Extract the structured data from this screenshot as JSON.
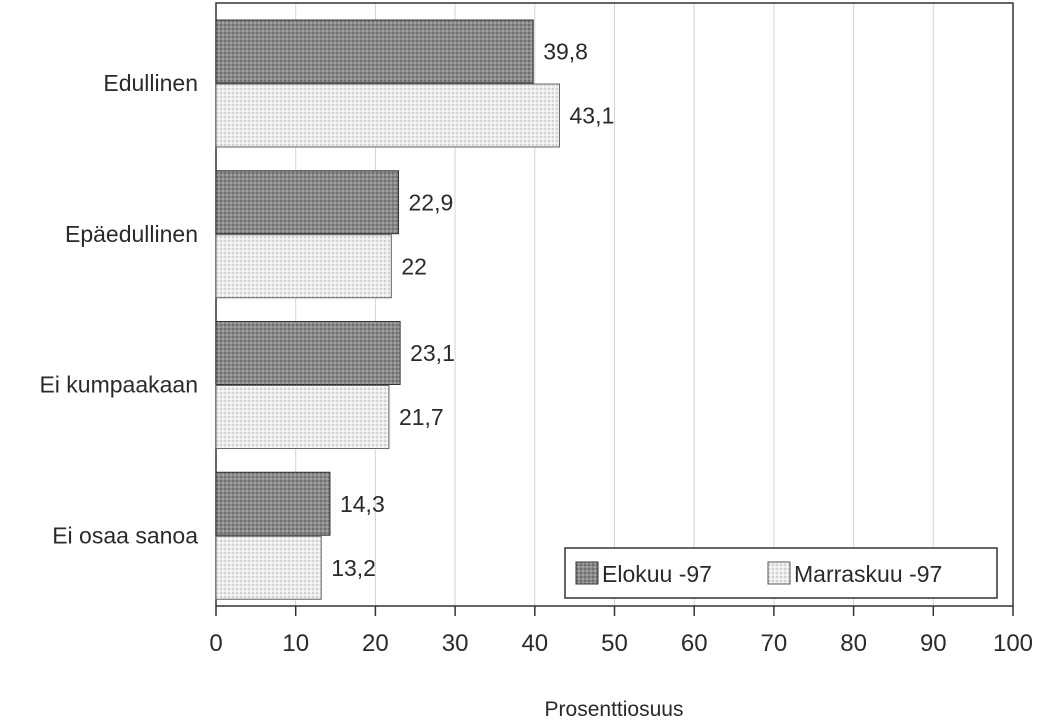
{
  "chart_data": {
    "type": "bar",
    "orientation": "horizontal",
    "title": "",
    "xlabel": "Prosenttiosuus",
    "ylabel": "",
    "categories": [
      "Edullinen",
      "Epäedullinen",
      "Ei kumpaakaan",
      "Ei osaa sanoa"
    ],
    "series": [
      {
        "name": "Elokuu -97",
        "values": [
          39.8,
          22.9,
          23.1,
          14.3
        ],
        "labels": [
          "39,8",
          "22,9",
          "23,1",
          "14,3"
        ],
        "color": "#8c8c8c"
      },
      {
        "name": "Marraskuu -97",
        "values": [
          43.1,
          22,
          21.7,
          13.2
        ],
        "labels": [
          "43,1",
          "22",
          "21,7",
          "13,2"
        ],
        "color": "#e6e6e6"
      }
    ],
    "xlim": [
      0,
      100
    ],
    "xticks": [
      "0",
      "10",
      "20",
      "30",
      "40",
      "50",
      "60",
      "70",
      "80",
      "90",
      "100"
    ],
    "grid": "vertical",
    "legend_position": "bottom-right"
  }
}
